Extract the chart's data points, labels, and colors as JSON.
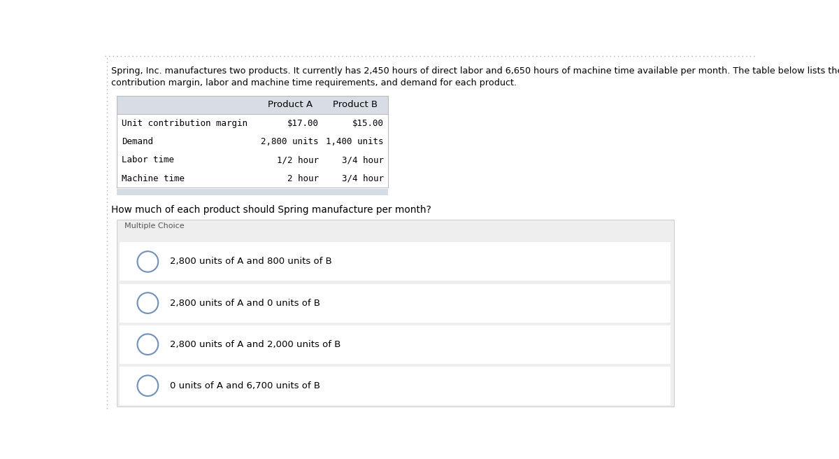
{
  "intro_text_line1": "Spring, Inc. manufactures two products. It currently has 2,450 hours of direct labor and 6,650 hours of machine time available per month. The table below lists the",
  "intro_text_line2": "contribution margin, labor and machine time requirements, and demand for each product.",
  "table_headers": [
    "Product A",
    "Product B"
  ],
  "table_rows": [
    [
      "Unit contribution margin",
      "$17.00",
      "$15.00"
    ],
    [
      "Demand",
      "2,800 units",
      "1,400 units"
    ],
    [
      "Labor time",
      "1/2 hour",
      "3/4 hour"
    ],
    [
      "Machine time",
      "2 hour",
      "3/4 hour"
    ]
  ],
  "question": "How much of each product should Spring manufacture per month?",
  "multiple_choice_label": "Multiple Choice",
  "choices": [
    "2,800 units of A and 800 units of B",
    "2,800 units of A and 0 units of B",
    "2,800 units of A and 2,000 units of B",
    "0 units of A and 6,700 units of B"
  ],
  "bg_color": "#ffffff",
  "table_header_bg": "#d8dde5",
  "mc_box_bg": "#eeeeee",
  "choice_bg": "#f8f8f8",
  "choice_white_bg": "#ffffff",
  "border_color": "#bbbbbb",
  "text_color": "#000000",
  "circle_color": "#7090bb",
  "mono_font": "monospace",
  "sans_font": "sans-serif",
  "top_border_color": "#aaaacc",
  "left_border_color": "#aaaacc",
  "table_accent_color": "#aabbcc"
}
